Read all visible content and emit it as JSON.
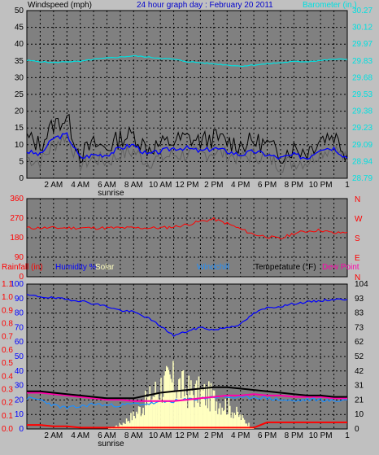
{
  "title": "24 hour graph day : February 20 2011",
  "colors": {
    "background": "#c0c0c0",
    "plot_bg": "#808080",
    "grid": "#000000",
    "windspeed": "#000000",
    "windgust": "#606060",
    "windavg": "#0000ff",
    "barometer": "#00e0e0",
    "direction": "#ff0000",
    "temperature": "#000000",
    "humidity": "#0000ff",
    "rainfall": "#ff0000",
    "solar": "#ffffc0",
    "windchill": "#1e90ff",
    "dewpoint": "#ff00aa"
  },
  "x_ticks": [
    "2 AM",
    "4 AM",
    "6 AM",
    "8 AM",
    "10 AM",
    "12 PM",
    "2 PM",
    "4 PM",
    "6 PM",
    "8 PM",
    "10 PM"
  ],
  "x_end_label": "1",
  "sunrise_label": "sunrise",
  "chart_data": [
    {
      "type": "line",
      "panel": "wind",
      "left_label": "Windspeed (mph)",
      "right_label": "Barometer (in.)",
      "yticks_left": [
        "50",
        "45",
        "40",
        "35",
        "30",
        "25",
        "20",
        "15",
        "10",
        "5",
        "0"
      ],
      "yticks_right": [
        "30.27",
        "30.12",
        "29.97",
        "29.83",
        "29.68",
        "29.53",
        "29.38",
        "29.23",
        "29.09",
        "28.94",
        "28.79"
      ],
      "ylim_left": [
        0,
        50
      ],
      "ylim_right": [
        28.79,
        30.27
      ],
      "x_hours": [
        0,
        1,
        2,
        3,
        4,
        5,
        6,
        7,
        8,
        9,
        10,
        11,
        12,
        13,
        14,
        15,
        16,
        17,
        18,
        19,
        20,
        21,
        22,
        23,
        24
      ],
      "series": [
        {
          "key": "windspeed",
          "values": [
            12,
            10,
            16,
            18,
            7,
            10,
            9,
            12,
            13,
            9,
            10,
            11,
            12,
            11,
            12,
            11,
            10,
            11,
            10,
            7,
            9,
            8,
            12,
            13,
            7
          ]
        },
        {
          "key": "windgust",
          "values": [
            6,
            5,
            10,
            13,
            4,
            6,
            5,
            7,
            8,
            5,
            6,
            7,
            7,
            7,
            8,
            7,
            6,
            7,
            6,
            4,
            5,
            5,
            8,
            9,
            5
          ]
        },
        {
          "key": "windavg",
          "values": [
            8,
            7,
            12,
            13,
            6,
            7,
            7,
            9,
            10,
            7,
            8,
            9,
            9,
            8,
            9,
            8,
            7,
            8,
            7,
            6,
            7,
            6,
            9,
            9,
            6
          ]
        },
        {
          "key": "barometer",
          "values": [
            29.83,
            29.82,
            29.81,
            29.82,
            29.82,
            29.84,
            29.85,
            29.86,
            29.87,
            29.86,
            29.85,
            29.84,
            29.82,
            29.81,
            29.8,
            29.79,
            29.78,
            29.79,
            29.8,
            29.81,
            29.82,
            29.82,
            29.83,
            29.84,
            29.84
          ]
        }
      ]
    },
    {
      "type": "line",
      "panel": "direction",
      "yticks_left": [
        "360",
        "270",
        "180",
        "90",
        "0"
      ],
      "yticks_right": [
        "N",
        "W",
        "S",
        "E",
        "N"
      ],
      "ylim_left": [
        0,
        360
      ],
      "x_hours": [
        0,
        1,
        2,
        3,
        4,
        5,
        6,
        7,
        8,
        9,
        10,
        11,
        12,
        13,
        14,
        15,
        16,
        17,
        18,
        19,
        20,
        21,
        22,
        23,
        24
      ],
      "series": [
        {
          "key": "direction",
          "values": [
            225,
            225,
            225,
            225,
            225,
            225,
            225,
            225,
            225,
            225,
            225,
            230,
            240,
            255,
            265,
            245,
            220,
            195,
            185,
            175,
            200,
            210,
            215,
            200,
            205
          ]
        }
      ]
    },
    {
      "type": "line",
      "panel": "climate",
      "labels": {
        "rainfall": "Rainfall (in)",
        "humidity": "Humidity %",
        "solar": "Solar",
        "windchill": "Windchill",
        "temperature": "Temperature (°F)",
        "dewpoint": "Dew Point"
      },
      "yticks_rain": [
        "1.1",
        "1.0",
        "0.9",
        "0.8",
        "0.7",
        "0.6",
        "0.5",
        "0.4",
        "0.3",
        "0.2",
        "0.1",
        "0.0"
      ],
      "yticks_humidity": [
        "100",
        "90",
        "80",
        "70",
        "60",
        "50",
        "40",
        "30",
        "20",
        "10",
        "0"
      ],
      "yticks_temp": [
        "104",
        "93",
        "83",
        "73",
        "62",
        "52",
        "42",
        "31",
        "21",
        "10",
        "0"
      ],
      "ylim_humidity": [
        0,
        104
      ],
      "ylim_temp": [
        0,
        104
      ],
      "x_hours": [
        0,
        1,
        2,
        3,
        4,
        5,
        6,
        7,
        8,
        9,
        10,
        11,
        12,
        13,
        14,
        15,
        16,
        17,
        18,
        19,
        20,
        21,
        22,
        23,
        24
      ],
      "series": [
        {
          "key": "humidity",
          "values": [
            96,
            95,
            94,
            93,
            92,
            90,
            88,
            85,
            84,
            80,
            74,
            67,
            70,
            73,
            71,
            73,
            75,
            83,
            87,
            88,
            90,
            91,
            92,
            93,
            93
          ]
        },
        {
          "key": "temperature",
          "values": [
            27,
            27,
            26,
            25,
            24,
            23,
            22,
            22,
            22,
            24,
            26,
            27,
            28,
            29,
            30,
            30,
            29,
            28,
            27,
            26,
            25,
            24,
            24,
            23,
            23
          ]
        },
        {
          "key": "dewpoint",
          "values": [
            26,
            26,
            25,
            24,
            23,
            22,
            21,
            21,
            20,
            20,
            20,
            20,
            21,
            22,
            23,
            24,
            24,
            25,
            24,
            24,
            23,
            23,
            23,
            22,
            22
          ]
        },
        {
          "key": "windchill",
          "values": [
            22,
            21,
            17,
            15,
            16,
            18,
            17,
            17,
            18,
            18,
            19,
            20,
            21,
            22,
            23,
            23,
            22,
            23,
            22,
            21,
            20,
            21,
            21,
            20,
            21
          ]
        },
        {
          "key": "rainfall",
          "values": [
            0.03,
            0.03,
            0.02,
            0.02,
            0.01,
            0.01,
            0.01,
            0.01,
            0.01,
            0.01,
            0.01,
            0.01,
            0.01,
            0.01,
            0.01,
            0.01,
            0.01,
            0.01,
            0.05,
            0.05,
            0.05,
            0.05,
            0.05,
            0.05,
            0.05
          ]
        },
        {
          "key": "solar",
          "values": [
            0,
            0,
            0,
            0,
            0,
            0,
            0,
            5,
            15,
            30,
            46,
            50,
            40,
            38,
            32,
            25,
            12,
            0,
            0,
            0,
            0,
            0,
            0,
            0,
            0
          ]
        }
      ]
    }
  ]
}
